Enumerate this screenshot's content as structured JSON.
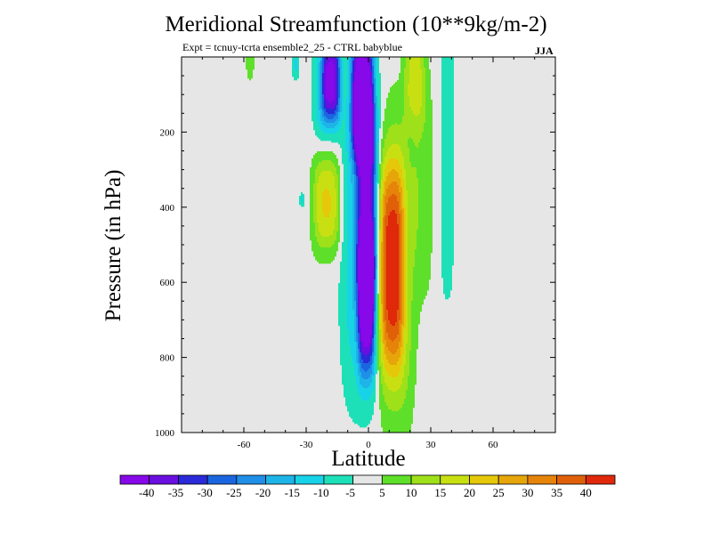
{
  "colors": {
    "background": "#e6e6e6",
    "levels": [
      {
        "value": -40,
        "color": "#8708e8"
      },
      {
        "value": -35,
        "color": "#6a0fe0"
      },
      {
        "value": -30,
        "color": "#2a2ad8"
      },
      {
        "value": -25,
        "color": "#1a66e0"
      },
      {
        "value": -20,
        "color": "#1f8fe8"
      },
      {
        "value": -15,
        "color": "#1fb4e8"
      },
      {
        "value": -10,
        "color": "#18d2e8"
      },
      {
        "value": -5,
        "color": "#1ee0b8"
      },
      {
        "value": 0,
        "color": "#e6e6e6"
      },
      {
        "value": 5,
        "color": "#5ee02a"
      },
      {
        "value": 10,
        "color": "#9ee01a"
      },
      {
        "value": 15,
        "color": "#c8e012"
      },
      {
        "value": 20,
        "color": "#e6c80a"
      },
      {
        "value": 25,
        "color": "#e6a60a"
      },
      {
        "value": 30,
        "color": "#e6840a"
      },
      {
        "value": 35,
        "color": "#e0600a"
      },
      {
        "value": 40,
        "color": "#e0280a"
      }
    ]
  },
  "chart_data": {
    "type": "heatmap",
    "title": "Meridional Streamfunction (10**9kg/m-2)",
    "subtitle": "Expt = tcnuy-tcrta  ensemble2_25 - CTRL babyblue",
    "season": "JJA",
    "xlabel": "Latitude",
    "ylabel": "Pressure (in hPa)",
    "xlim": [
      -90,
      90
    ],
    "ylim": [
      1000,
      0
    ],
    "xticks": [
      -60,
      -30,
      0,
      30,
      60
    ],
    "yticks": [
      200,
      400,
      600,
      800,
      1000
    ],
    "colorbar_labels": [
      "-40",
      "-35",
      "-30",
      "-25",
      "-20",
      "-15",
      "-10",
      "-5",
      "5",
      "10",
      "15",
      "20",
      "25",
      "30",
      "35",
      "40"
    ],
    "features": [
      {
        "name": "main-negative-cell",
        "lat": -3,
        "lat_halfwidth": 5.5,
        "p": 100,
        "p_halfwidth": 170,
        "value": -42
      },
      {
        "name": "upper-negative-column",
        "lat": -1,
        "lat_halfwidth": 5.0,
        "p": 420,
        "p_halfwidth": 300,
        "value": -26
      },
      {
        "name": "lower-negative-column",
        "lat": -1,
        "lat_halfwidth": 4.0,
        "p": 660,
        "p_halfwidth": 200,
        "value": -28
      },
      {
        "name": "negative-fringe",
        "lat": -3,
        "lat_halfwidth": 10.0,
        "p": 470,
        "p_halfwidth": 440,
        "value": -12
      },
      {
        "name": "upper-left-negative",
        "lat": -18,
        "lat_halfwidth": 4.5,
        "p": 60,
        "p_halfwidth": 110,
        "value": -30
      },
      {
        "name": "upper-left-negative-outer",
        "lat": -20,
        "lat_halfwidth": 6.5,
        "p": 90,
        "p_halfwidth": 130,
        "value": -12
      },
      {
        "name": "main-positive-cell",
        "lat": 11,
        "lat_halfwidth": 6.0,
        "p": 560,
        "p_halfwidth": 270,
        "value": 30
      },
      {
        "name": "positive-fringe",
        "lat": 13,
        "lat_halfwidth": 9.0,
        "p": 560,
        "p_halfwidth": 420,
        "value": 13
      },
      {
        "name": "upper-positive",
        "lat": 22,
        "lat_halfwidth": 5.0,
        "p": 40,
        "p_halfwidth": 140,
        "value": 12
      },
      {
        "name": "weak-positive-band",
        "lat": 26,
        "lat_halfwidth": 5.0,
        "p": 320,
        "p_halfwidth": 330,
        "value": 6
      },
      {
        "name": "left-positive",
        "lat": -20,
        "lat_halfwidth": 6.0,
        "p": 390,
        "p_halfwidth": 110,
        "value": 12
      },
      {
        "name": "left-positive-outer",
        "lat": -20,
        "lat_halfwidth": 8.0,
        "p": 390,
        "p_halfwidth": 160,
        "value": 6
      },
      {
        "name": "far-upper-left-positive",
        "lat": -57,
        "lat_halfwidth": 1.8,
        "p": 0,
        "p_halfwidth": 60,
        "value": 7
      },
      {
        "name": "right-weak-negative",
        "lat": 38,
        "lat_halfwidth": 3.2,
        "p": 260,
        "p_halfwidth": 380,
        "value": -7
      },
      {
        "name": "small-negative-spot",
        "lat": -32,
        "lat_halfwidth": 1.0,
        "p": 380,
        "p_halfwidth": 18,
        "value": -9
      },
      {
        "name": "upper-left-negative-spot",
        "lat": -35,
        "lat_halfwidth": 1.6,
        "p": 20,
        "p_halfwidth": 40,
        "value": -8
      }
    ]
  }
}
